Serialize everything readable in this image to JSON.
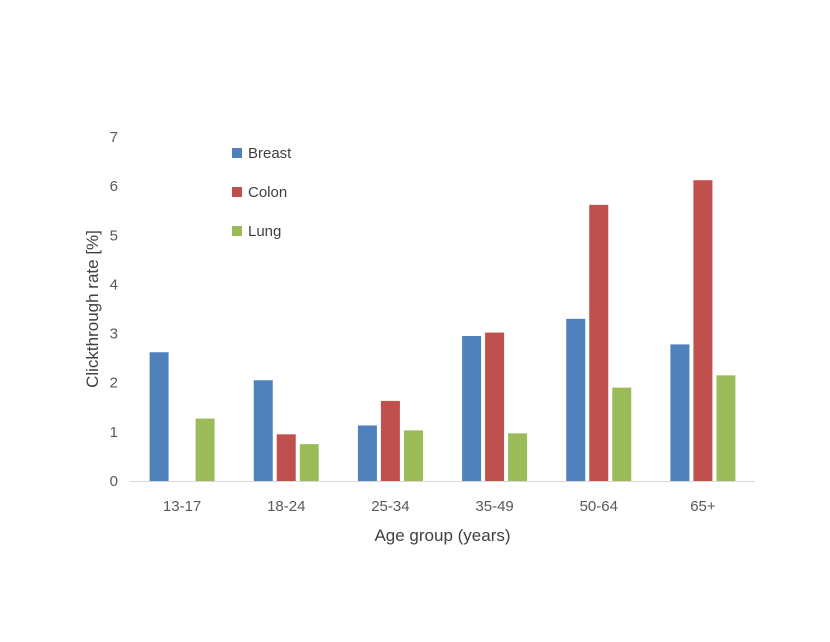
{
  "chart_data": {
    "type": "bar",
    "title": "",
    "xlabel": "Age group (years)",
    "ylabel": "Clickthrough rate [%]",
    "ylim": [
      0,
      7
    ],
    "yticks": [
      "0",
      "1",
      "2",
      "3",
      "4",
      "5",
      "6",
      "7"
    ],
    "grid": false,
    "legend_position": "top-left",
    "categories": [
      "13-17",
      "18-24",
      "25-34",
      "35-49",
      "50-64",
      "65+"
    ],
    "series": [
      {
        "name": "Breast",
        "color": "#4F81BD",
        "values": [
          2.62,
          2.05,
          1.13,
          2.95,
          3.3,
          2.78
        ]
      },
      {
        "name": "Colon",
        "color": "#C0504D",
        "values": [
          null,
          0.95,
          1.63,
          3.02,
          5.62,
          6.12
        ]
      },
      {
        "name": "Lung",
        "color": "#9BBB59",
        "values": [
          1.27,
          0.75,
          1.03,
          0.97,
          1.9,
          2.15
        ]
      }
    ]
  }
}
